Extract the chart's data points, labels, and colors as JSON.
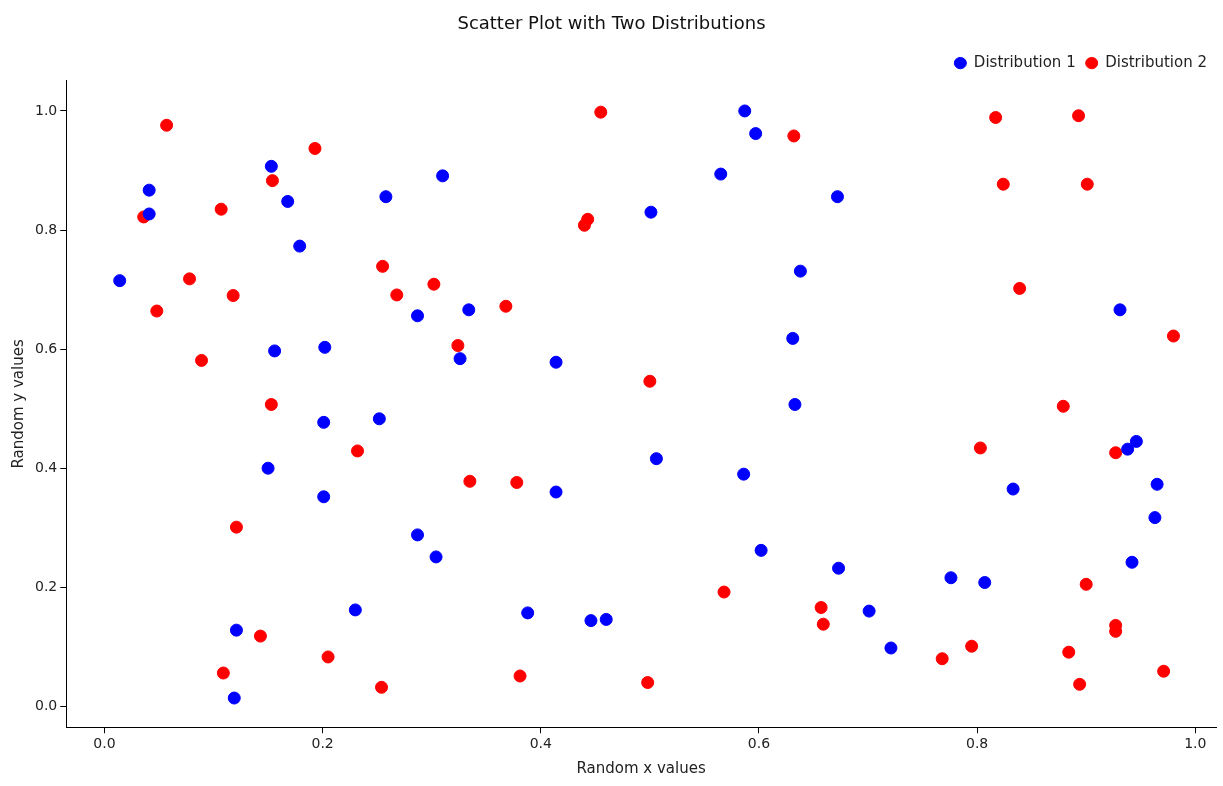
{
  "chart_data": {
    "type": "scatter",
    "title": "Scatter Plot with Two Distributions",
    "xlabel": "Random x values",
    "ylabel": "Random y values",
    "xlim": [
      -0.035,
      1.019
    ],
    "ylim": [
      -0.035,
      1.051
    ],
    "xticks": [
      {
        "value": 0,
        "label": "0.0"
      },
      {
        "value": 0.2,
        "label": "0.2"
      },
      {
        "value": 0.4,
        "label": "0.4"
      },
      {
        "value": 0.6,
        "label": "0.6"
      },
      {
        "value": 0.8,
        "label": "0.8"
      },
      {
        "value": 1,
        "label": "1.0"
      }
    ],
    "yticks": [
      {
        "value": 0,
        "label": "0.0"
      },
      {
        "value": 0.2,
        "label": "0.2"
      },
      {
        "value": 0.4,
        "label": "0.4"
      },
      {
        "value": 0.6,
        "label": "0.6"
      },
      {
        "value": 0.8,
        "label": "0.8"
      },
      {
        "value": 1,
        "label": "1.0"
      }
    ],
    "grid": false,
    "legend": "top right",
    "marker": "circle",
    "series": [
      {
        "name": "Distribution 1",
        "color": "#0000ff",
        "x": [
          0.014,
          0.041,
          0.041,
          0.153,
          0.168,
          0.179,
          0.156,
          0.202,
          0.201,
          0.15,
          0.201,
          0.121,
          0.119,
          0.258,
          0.31,
          0.252,
          0.287,
          0.334,
          0.326,
          0.23,
          0.287,
          0.304,
          0.414,
          0.414,
          0.388,
          0.446,
          0.46,
          0.501,
          0.506,
          0.565,
          0.587,
          0.597,
          0.672,
          0.638,
          0.631,
          0.633,
          0.586,
          0.602,
          0.673,
          0.701,
          0.721,
          0.776,
          0.807,
          0.833,
          0.931,
          0.938,
          0.946,
          0.965,
          0.963,
          0.942
        ],
        "values": [
          0.715,
          0.867,
          0.827,
          0.907,
          0.848,
          0.773,
          0.597,
          0.603,
          0.477,
          0.4,
          0.352,
          0.128,
          0.014,
          0.856,
          0.891,
          0.483,
          0.656,
          0.666,
          0.584,
          0.162,
          0.288,
          0.251,
          0.578,
          0.36,
          0.157,
          0.144,
          0.146,
          0.83,
          0.416,
          0.894,
          1.0,
          0.962,
          0.856,
          0.731,
          0.618,
          0.507,
          0.39,
          0.262,
          0.232,
          0.16,
          0.098,
          0.216,
          0.208,
          0.365,
          0.666,
          0.432,
          0.445,
          0.373,
          0.317,
          0.242
        ]
      },
      {
        "name": "Distribution 2",
        "color": "#ff0000",
        "x": [
          0.036,
          0.048,
          0.057,
          0.078,
          0.089,
          0.107,
          0.118,
          0.121,
          0.109,
          0.143,
          0.154,
          0.153,
          0.193,
          0.205,
          0.232,
          0.255,
          0.268,
          0.302,
          0.254,
          0.324,
          0.335,
          0.378,
          0.368,
          0.44,
          0.443,
          0.455,
          0.381,
          0.5,
          0.498,
          0.568,
          0.632,
          0.657,
          0.659,
          0.768,
          0.795,
          0.803,
          0.817,
          0.824,
          0.839,
          0.879,
          0.884,
          0.893,
          0.901,
          0.894,
          0.9,
          0.927,
          0.927,
          0.927,
          0.971,
          0.98
        ],
        "values": [
          0.822,
          0.664,
          0.976,
          0.718,
          0.581,
          0.835,
          0.69,
          0.301,
          0.056,
          0.118,
          0.883,
          0.507,
          0.937,
          0.083,
          0.429,
          0.739,
          0.691,
          0.709,
          0.032,
          0.606,
          0.378,
          0.376,
          0.672,
          0.808,
          0.818,
          0.998,
          0.051,
          0.546,
          0.04,
          0.192,
          0.958,
          0.166,
          0.138,
          0.08,
          0.101,
          0.434,
          0.989,
          0.877,
          0.702,
          0.504,
          0.091,
          0.992,
          0.877,
          0.037,
          0.205,
          0.426,
          0.136,
          0.126,
          0.059,
          0.622
        ]
      }
    ]
  }
}
